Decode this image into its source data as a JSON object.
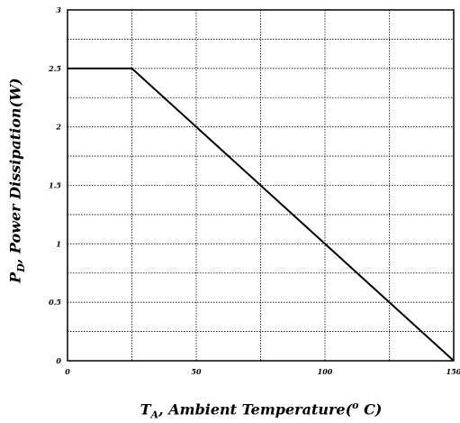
{
  "chart_data": {
    "type": "line",
    "title": "",
    "xlabel": {
      "main": "T",
      "sub": "A",
      "rest": ", Ambient Temperature(",
      "sup": "o",
      "end": " C)"
    },
    "ylabel": {
      "main": "P",
      "sub": "D",
      "rest": ", Power Dissipation(W)"
    },
    "xlim": [
      0,
      150
    ],
    "ylim": [
      0,
      3
    ],
    "x_ticks": [
      "0",
      "50",
      "100",
      "150"
    ],
    "y_ticks": [
      "0",
      "0.5",
      "1",
      "1.5",
      "2",
      "2.5",
      "3"
    ],
    "grid": true,
    "series": [
      {
        "x": [
          0,
          25,
          150
        ],
        "y": [
          2.5,
          2.5,
          0
        ]
      }
    ]
  }
}
